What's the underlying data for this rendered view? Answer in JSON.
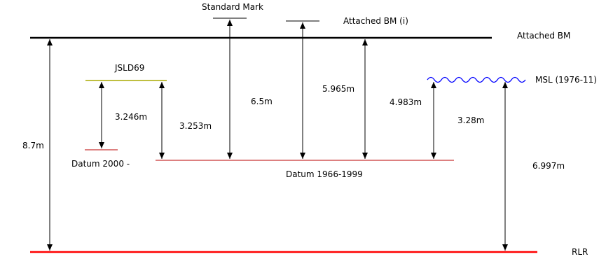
{
  "labels": {
    "standard_mark": "Standard Mark",
    "attached_bm_i": "Attached BM (i)",
    "attached_bm": "Attached BM",
    "jsld69": "JSLD69",
    "msl": "MSL (1976-11)",
    "datum_2000": "Datum 2000 -",
    "datum_1966": "Datum 1966-1999",
    "rlr": "RLR"
  },
  "measurements": {
    "m_8_7": "8.7m",
    "m_3_246": "3.246m",
    "m_3_253": "3.253m",
    "m_6_5": "6.5m",
    "m_5_965": "5.965m",
    "m_4_983": "4.983m",
    "m_3_28": "3.28m",
    "m_6_997": "6.997m"
  },
  "colors": {
    "black_line": "#000000",
    "red_line": "#ff0000",
    "dark_red_line": "#bb0000",
    "olive_line": "#aaaa00",
    "wave_blue": "#0000ff"
  }
}
